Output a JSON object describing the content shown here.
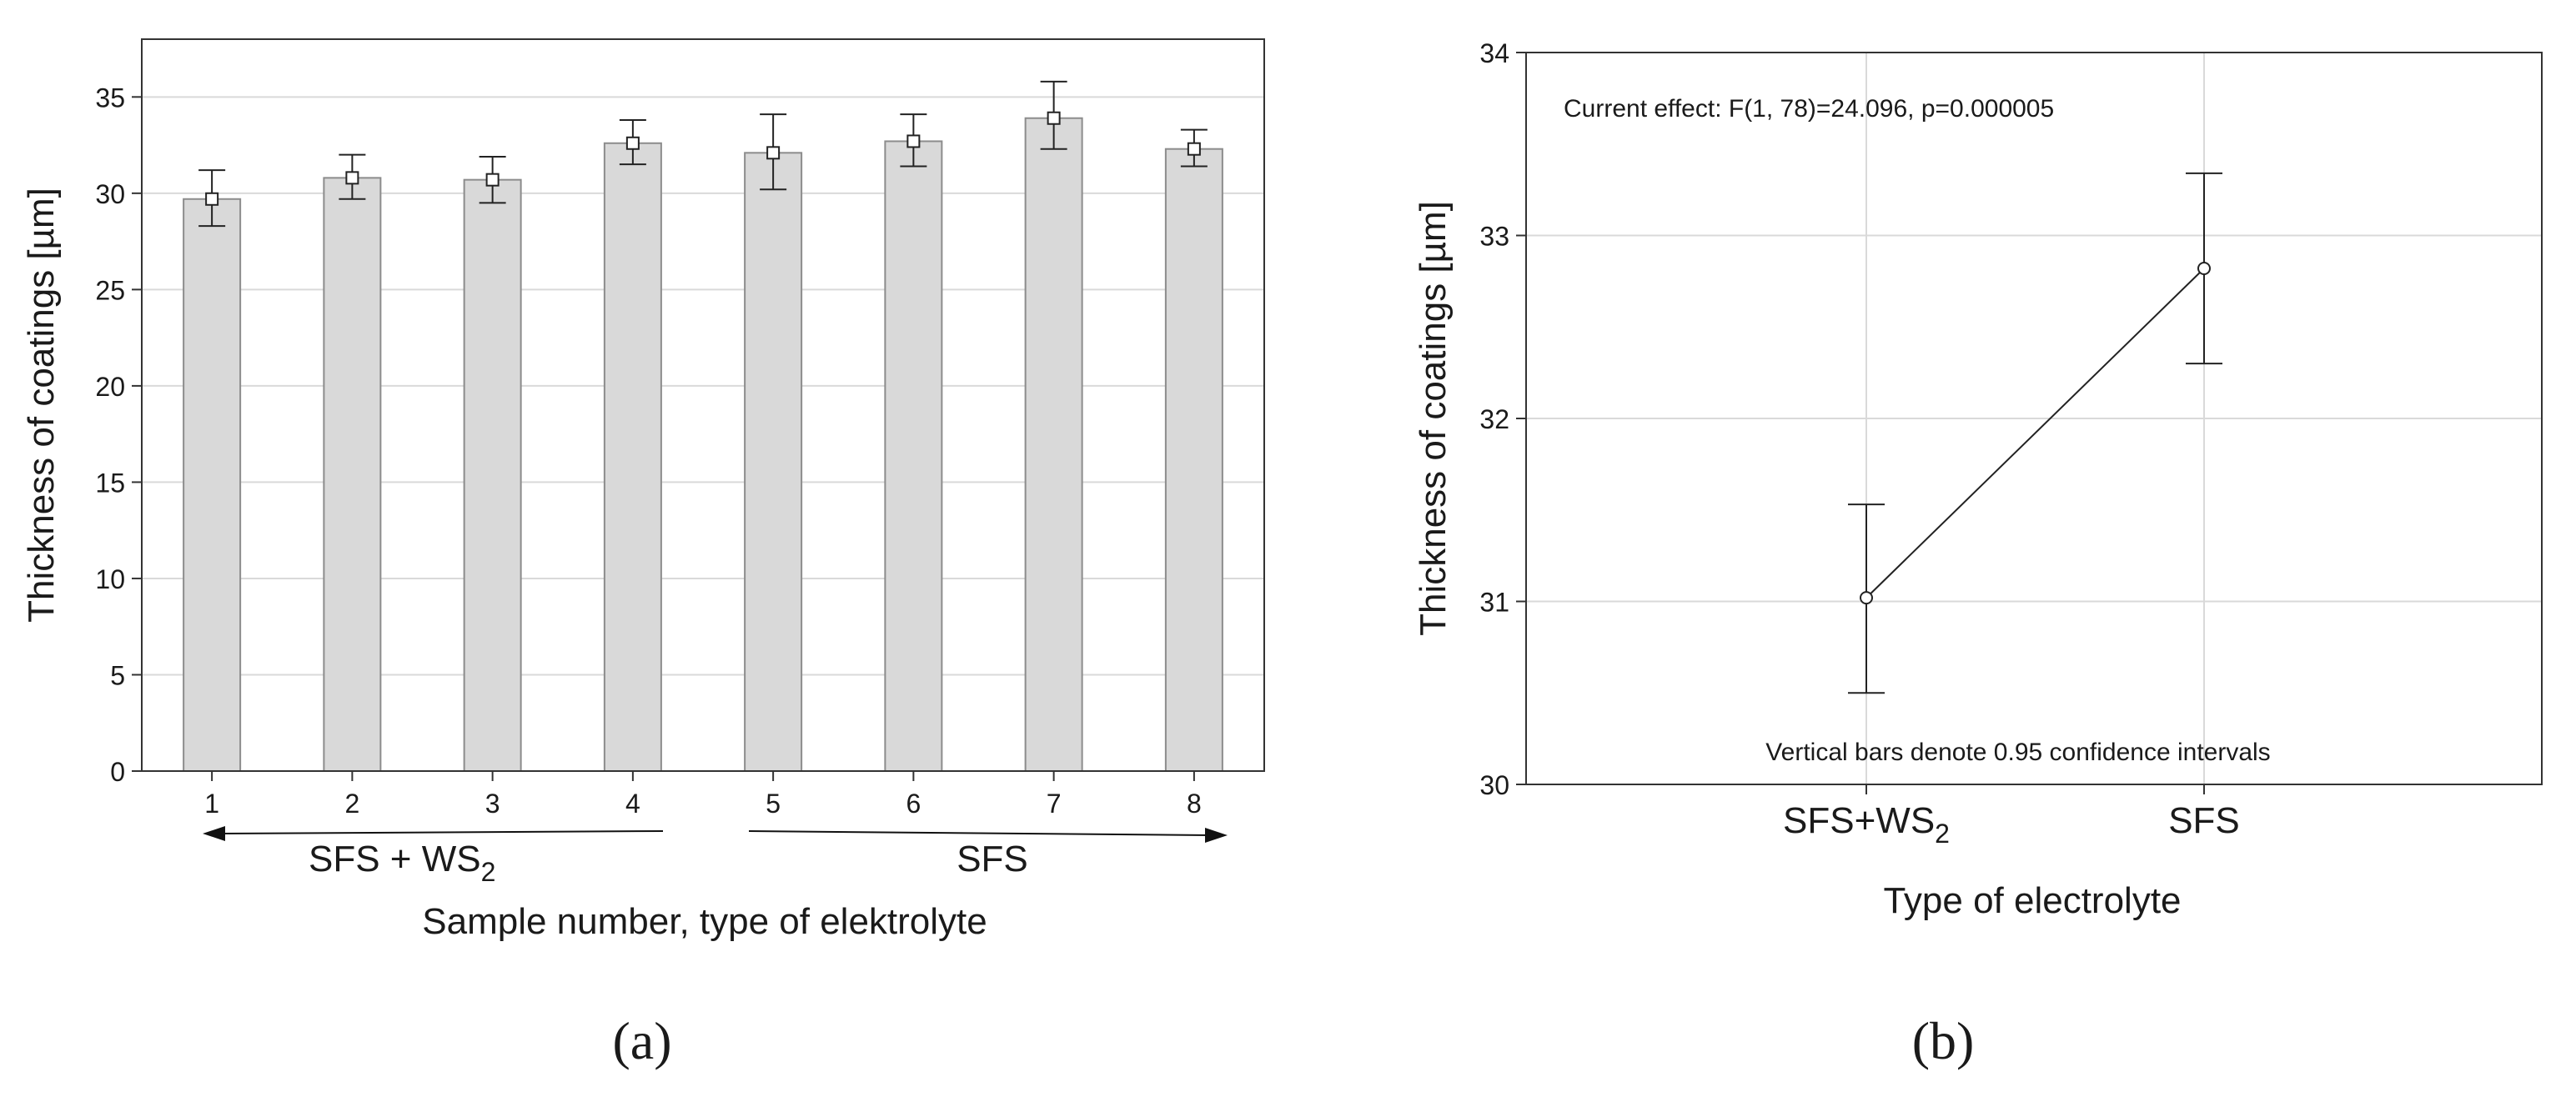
{
  "chart_data": [
    {
      "type": "bar",
      "ylabel": "Thickness of coatings [µm]",
      "xlabel": "Sample number, type of elektrolyte",
      "categories": [
        "1",
        "2",
        "3",
        "4",
        "5",
        "6",
        "7",
        "8"
      ],
      "values": [
        29.7,
        30.8,
        30.7,
        32.6,
        32.1,
        32.7,
        33.9,
        32.3
      ],
      "error_low": [
        28.3,
        29.7,
        29.5,
        31.5,
        30.2,
        31.4,
        32.3,
        31.4
      ],
      "error_high": [
        31.2,
        32.0,
        31.9,
        33.8,
        34.1,
        34.1,
        35.8,
        33.3
      ],
      "ylim": [
        0,
        38
      ],
      "yticks": [
        0,
        5,
        10,
        15,
        20,
        25,
        30,
        35
      ],
      "grid": true,
      "groups": [
        {
          "label": "SFS + WS",
          "sub": "2",
          "from": 1,
          "to": 4,
          "arrow": "left"
        },
        {
          "label": "SFS",
          "from": 5,
          "to": 8,
          "arrow": "right"
        }
      ],
      "panel_label": "(a)"
    },
    {
      "type": "line",
      "ylabel": "Thickness of coatings [µm]",
      "xlabel": "Type of electrolyte",
      "categories": [
        {
          "label": "SFS+WS",
          "sub": "2"
        },
        {
          "label": "SFS",
          "sub": ""
        }
      ],
      "values": [
        31.02,
        32.82
      ],
      "error_low": [
        30.5,
        32.3
      ],
      "error_high": [
        31.53,
        33.34
      ],
      "ylim": [
        30,
        34
      ],
      "yticks": [
        30,
        31,
        32,
        33,
        34
      ],
      "grid": true,
      "annotations": {
        "top": "Current effect: F(1, 78)=24.096, p=0.000005",
        "bottom": "Vertical bars denote 0.95 confidence intervals"
      },
      "panel_label": "(b)"
    }
  ]
}
